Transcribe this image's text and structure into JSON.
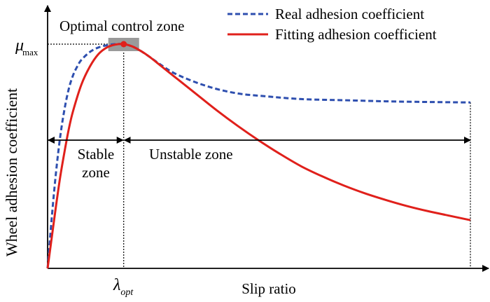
{
  "chart_data": {
    "type": "line",
    "xlabel": "Slip ratio",
    "ylabel": "Wheel adhesion coefficient",
    "x_ticks": {
      "opt_prefix": "λ",
      "opt_sub": "opt"
    },
    "y_ticks": {
      "max_prefix": "μ",
      "max_sub": "max"
    },
    "xlim": [
      0,
      1
    ],
    "ylim": [
      0,
      1
    ],
    "grid": false,
    "legend_position": "top-right",
    "annotations": {
      "optimal": "Optimal control zone",
      "stable_line1": "Stable",
      "stable_line2": "zone",
      "unstable": "Unstable zone"
    },
    "lambda_opt": 0.18,
    "mu_max": 1.0,
    "series": [
      {
        "name": "Real adhesion coefficient",
        "style": "dashed",
        "color": "#2e4faf",
        "x": [
          0,
          0.01,
          0.02,
          0.03,
          0.04,
          0.05,
          0.06,
          0.07,
          0.08,
          0.1,
          0.12,
          0.14,
          0.16,
          0.18,
          0.2,
          0.22,
          0.24,
          0.27,
          0.3,
          0.35,
          0.4,
          0.45,
          0.5,
          0.6,
          0.7,
          0.8,
          0.9,
          1.0
        ],
        "y": [
          0,
          0.23,
          0.43,
          0.59,
          0.71,
          0.8,
          0.86,
          0.9,
          0.93,
          0.965,
          0.985,
          0.995,
          1.0,
          1.0,
          0.99,
          0.97,
          0.945,
          0.905,
          0.87,
          0.83,
          0.8,
          0.78,
          0.77,
          0.755,
          0.75,
          0.745,
          0.742,
          0.74
        ]
      },
      {
        "name": "Fitting adhesion coefficient",
        "style": "solid",
        "color": "#e0201b",
        "x": [
          0,
          0.01,
          0.02,
          0.03,
          0.04,
          0.05,
          0.06,
          0.08,
          0.1,
          0.12,
          0.14,
          0.16,
          0.18,
          0.2,
          0.22,
          0.24,
          0.27,
          0.3,
          0.35,
          0.4,
          0.45,
          0.5,
          0.55,
          0.6,
          0.65,
          0.7,
          0.75,
          0.8,
          0.85,
          0.9,
          0.95,
          1.0
        ],
        "y": [
          0,
          0.14,
          0.28,
          0.41,
          0.52,
          0.62,
          0.7,
          0.82,
          0.9,
          0.955,
          0.985,
          0.998,
          1.0,
          0.99,
          0.97,
          0.945,
          0.9,
          0.855,
          0.78,
          0.705,
          0.635,
          0.57,
          0.51,
          0.455,
          0.41,
          0.37,
          0.335,
          0.305,
          0.278,
          0.255,
          0.235,
          0.215
        ]
      }
    ],
    "colors": {
      "axis": "#000000",
      "highlight_box": "#9a9a9a",
      "peak_marker": "#e0201b"
    }
  }
}
